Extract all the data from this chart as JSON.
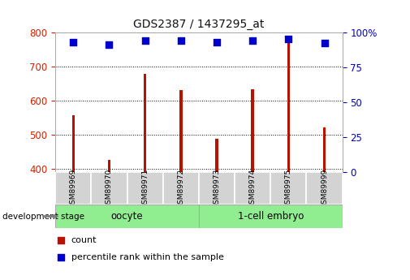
{
  "title": "GDS2387 / 1437295_at",
  "samples": [
    "GSM89969",
    "GSM89970",
    "GSM89971",
    "GSM89972",
    "GSM89973",
    "GSM89974",
    "GSM89975",
    "GSM89999"
  ],
  "counts": [
    557,
    425,
    678,
    630,
    488,
    633,
    775,
    522
  ],
  "percentiles": [
    93,
    91,
    94,
    94,
    93,
    94,
    95,
    92
  ],
  "ylim_left": [
    390,
    800
  ],
  "ylim_right": [
    0,
    100
  ],
  "bar_color": "#bb1100",
  "dot_color": "#0000cc",
  "grid_color": "#000000",
  "tick_color_left": "#cc2200",
  "tick_color_right": "#0000cc",
  "cell_bg": "#d3d3d3",
  "group_color": "#90ee90",
  "bar_width": 0.08,
  "dot_size": 28
}
